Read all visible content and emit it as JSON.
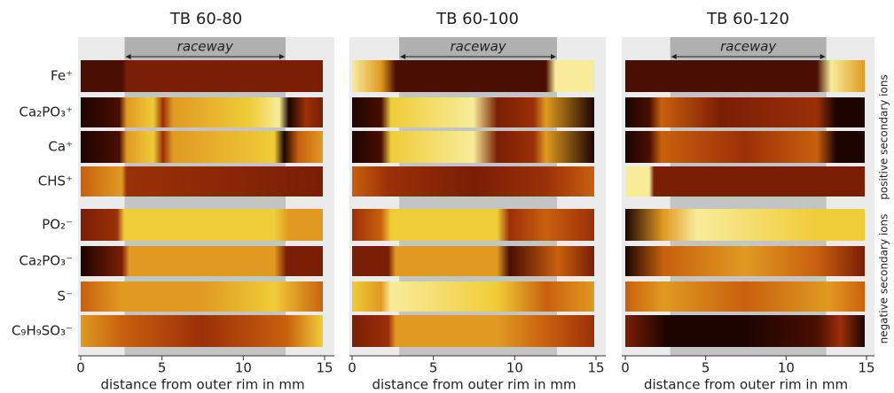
{
  "panels": [
    {
      "title": "TB 60-80",
      "region_label": "raceway",
      "region": [
        2.7,
        12.6
      ],
      "xlim": [
        0,
        15
      ],
      "xticks": [
        0,
        5,
        10,
        15
      ],
      "xlabel": "distance from outer rim in mm"
    },
    {
      "title": "TB 60-100",
      "region_label": "raceway",
      "region": [
        2.9,
        12.6
      ],
      "xlim": [
        0,
        15
      ],
      "xticks": [
        0,
        5,
        10,
        15
      ],
      "xlabel": "distance from outer rim in mm"
    },
    {
      "title": "TB 60-120",
      "region_label": "raceway",
      "region": [
        2.8,
        12.5
      ],
      "xlim": [
        0,
        15
      ],
      "xticks": [
        0,
        5,
        10,
        15
      ],
      "xlabel": "distance from outer rim in mm"
    }
  ],
  "rows": [
    "Fe⁺",
    "Ca₂PO₃⁺",
    "Ca⁺",
    "CHS⁺",
    "PO₂⁻",
    "Ca₂PO₃⁻",
    "S⁻",
    "C₉H₉SO₃⁻"
  ],
  "groups": [
    "positive secondary ions",
    "negative secondary ions"
  ]
}
